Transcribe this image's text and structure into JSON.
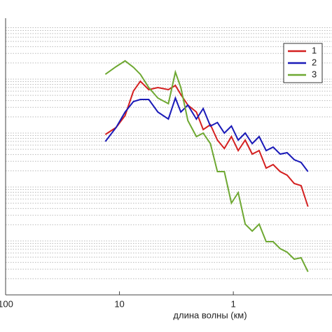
{
  "chart_data": {
    "type": "line",
    "x_label": "длина волны (км)",
    "x": [
      13.3,
      10.7,
      8.93,
      7.54,
      6.55,
      5.53,
      4.6,
      3.72,
      3.23,
      2.89,
      2.51,
      2.11,
      1.84,
      1.59,
      1.38,
      1.2,
      1.04,
      0.906,
      0.786,
      0.683,
      0.593,
      0.515,
      0.447,
      0.388,
      0.337,
      0.292,
      0.254,
      0.221
    ],
    "series": [
      {
        "name": "1",
        "color": "#d42020",
        "values": [
          942,
          1270,
          2110,
          6020,
          9140,
          6390,
          6990,
          6390,
          7640,
          5180,
          3310,
          2450,
          1160,
          1430,
          742,
          518,
          861,
          474,
          742,
          408,
          474,
          224,
          260,
          193,
          166,
          116,
          106,
          43.3
        ]
      },
      {
        "name": "2",
        "color": "#1a1ab8",
        "values": [
          699,
          1270,
          2450,
          3840,
          4200,
          4200,
          2450,
          1820,
          4460,
          2450,
          3310,
          1820,
          2850,
          1350,
          1570,
          1000,
          1350,
          742,
          1000,
          639,
          861,
          474,
          550,
          408,
          433,
          321,
          285,
          193
        ]
      },
      {
        "name": "3",
        "color": "#6ea832",
        "values": [
          12300,
          17100,
          21800,
          16600,
          12300,
          6990,
          4460,
          3510,
          13500,
          6990,
          1710,
          861,
          1000,
          639,
          193,
          193,
          50.3,
          78.7,
          20.5,
          15.2,
          20.5,
          9.7,
          9.7,
          7.2,
          6.2,
          4.6,
          4.88,
          2.68
        ]
      }
    ],
    "xlim": [
      100,
      0.136
    ],
    "xticks": [
      100,
      10,
      1
    ],
    "x_log": true,
    "ylim": [
      1,
      100000
    ],
    "y_log": true,
    "grid": true,
    "legend": "upper right"
  }
}
